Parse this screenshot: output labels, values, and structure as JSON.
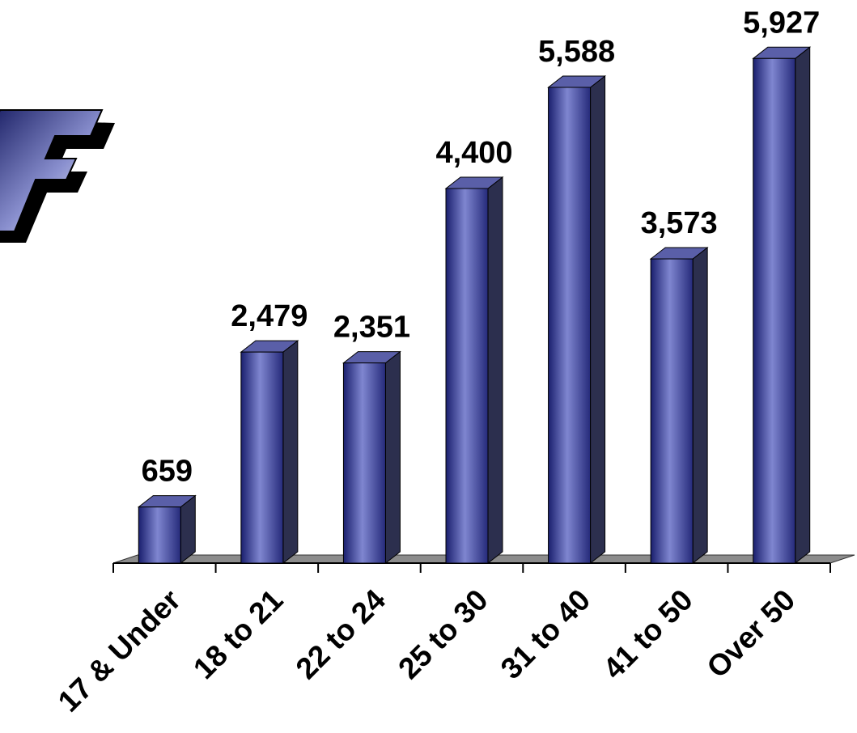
{
  "chart_data": {
    "type": "bar",
    "categories": [
      "17 & Under",
      "18 to 21",
      "22 to 24",
      "25 to 30",
      "31 to 40",
      "41 to 50",
      "Over 50"
    ],
    "values": [
      659,
      2479,
      2351,
      4400,
      5588,
      3573,
      5927
    ],
    "value_labels": [
      "659",
      "2,479",
      "2,351",
      "4,400",
      "5,588",
      "3,573",
      "5,927"
    ],
    "title": "",
    "xlabel": "",
    "ylabel": "",
    "ylim": [
      0,
      6500
    ],
    "grid": false,
    "legend": "none",
    "style": "3d-cylinder-like columns",
    "colors": {
      "bar_front_dark": "#1a1f6e",
      "bar_front_light": "#7f86d0",
      "bar_side": "#2c2f4e",
      "bar_top": "#5a5fa8",
      "floor": "#8c8c8c"
    }
  },
  "logo": {
    "letter": "F",
    "description": "logo"
  }
}
